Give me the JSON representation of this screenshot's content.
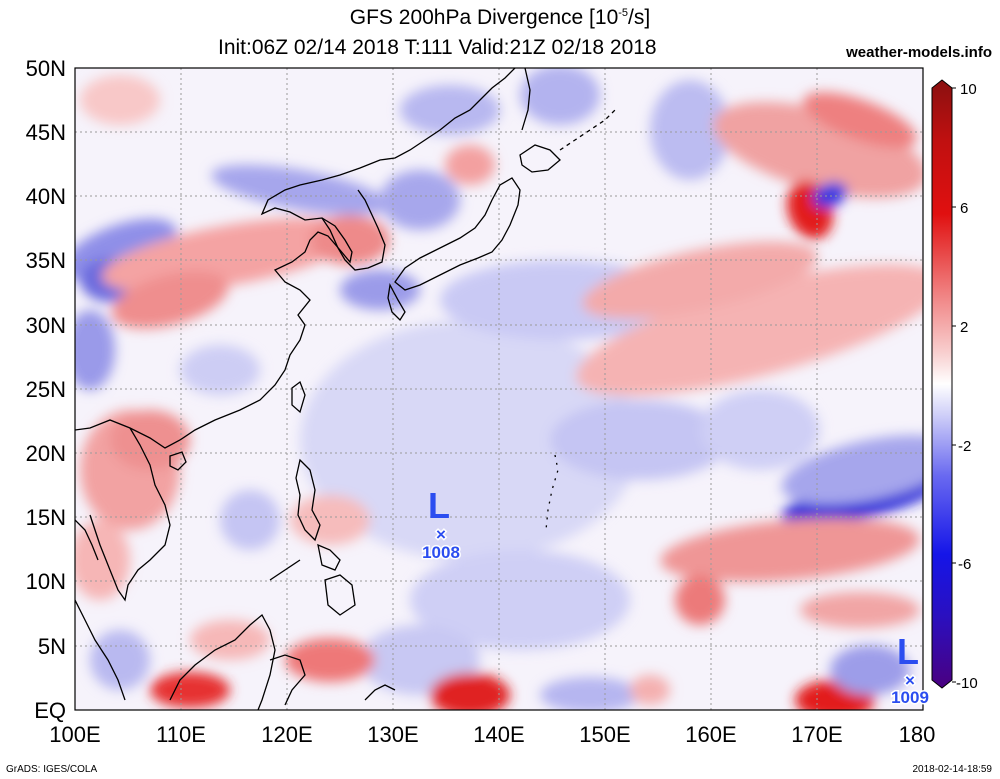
{
  "title": {
    "line1": "GFS 200hPa Divergence [10",
    "line1_exp": "-5",
    "line1_end": "/s]",
    "line2": "Init:06Z 02/14 2018 T:111 Valid:21Z 02/18 2018"
  },
  "brand": "weather-models.info",
  "footer": {
    "left": "GrADS: IGES/COLA",
    "right": "2018-02-14-18:59"
  },
  "axes": {
    "lat_labels": [
      "50N",
      "45N",
      "40N",
      "35N",
      "30N",
      "25N",
      "20N",
      "15N",
      "10N",
      "5N",
      "EQ"
    ],
    "lon_labels": [
      "100E",
      "110E",
      "120E",
      "130E",
      "140E",
      "150E",
      "160E",
      "170E",
      "180"
    ]
  },
  "colorbar": {
    "labels": [
      "10",
      "6",
      "2",
      "-2",
      "-6",
      "-10"
    ],
    "colors": [
      "#4a0080",
      "#1515e8",
      "#5a5af0",
      "#b9b9f7",
      "#ffffff",
      "#f5b0b0",
      "#ee5555",
      "#e01010",
      "#a01010"
    ]
  },
  "lows": [
    {
      "label": "L",
      "pressure": "1008"
    },
    {
      "label": "L",
      "pressure": "1009"
    }
  ]
}
